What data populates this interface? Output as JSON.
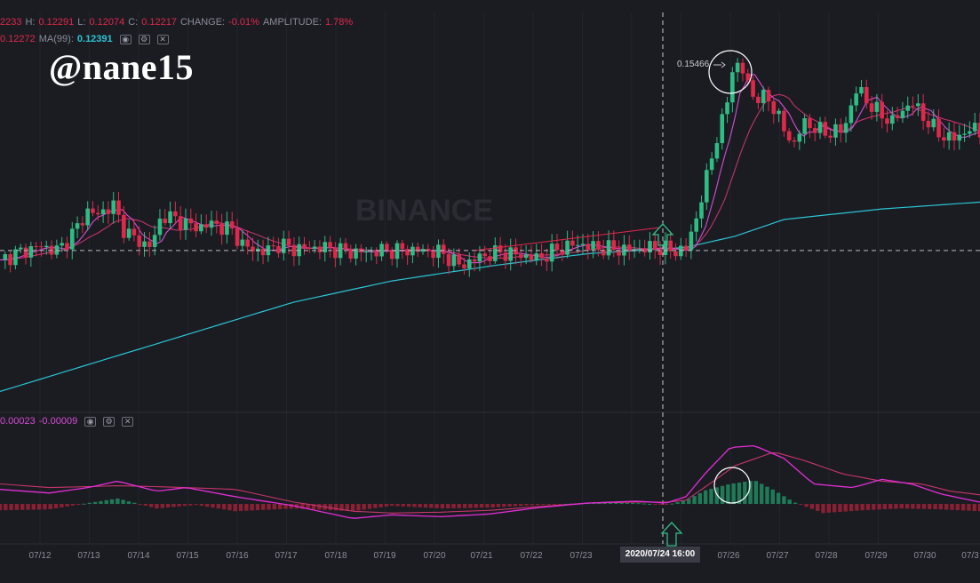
{
  "header": {
    "open_value": "2233",
    "h_label": "H:",
    "h_value": "0.12291",
    "l_label": "L:",
    "l_value": "0.12074",
    "c_label": "C:",
    "c_value": "0.12217",
    "change_label": "CHANGE:",
    "change_value": "-0.01%",
    "amplitude_label": "AMPLITUDE:",
    "amplitude_value": "1.78%"
  },
  "ma_row": {
    "ma_short_value": "0.12272",
    "ma99_label": "MA(99):",
    "ma99_value": "0.12391"
  },
  "macd_row": {
    "value_a": "0.00023",
    "value_b": "-0.00009"
  },
  "watermark": "@nane15",
  "brand_watermark": "BINANCE",
  "colors": {
    "up": "#2ebd85",
    "down": "#e0294a",
    "ma_fast": "#d64cd6",
    "ma_mid": "#c2336b",
    "ma99": "#2bc4d4",
    "dif": "#e22ed6",
    "dea": "#c7356c"
  },
  "chart_data": {
    "type": "candlestick",
    "current_price": 0.1225,
    "y_range": [
      0.097,
      0.16
    ],
    "x_ticks": [
      "07/12",
      "07/13",
      "07/14",
      "07/15",
      "07/16",
      "07/17",
      "07/18",
      "07/19",
      "07/20",
      "07/21",
      "07/22",
      "07/23",
      "07/26",
      "07/27",
      "07/28",
      "07/29",
      "07/30",
      "07/3"
    ],
    "cursor_label": "2020/07/24 16:00",
    "peak_label": "0.15466",
    "price_path": [
      [
        0,
        0.121
      ],
      [
        0.02,
        0.1222
      ],
      [
        0.04,
        0.1232
      ],
      [
        0.06,
        0.1225
      ],
      [
        0.08,
        0.1265
      ],
      [
        0.09,
        0.129
      ],
      [
        0.1,
        0.1282
      ],
      [
        0.115,
        0.13
      ],
      [
        0.125,
        0.1262
      ],
      [
        0.14,
        0.124
      ],
      [
        0.155,
        0.1232
      ],
      [
        0.165,
        0.1283
      ],
      [
        0.18,
        0.1275
      ],
      [
        0.2,
        0.1262
      ],
      [
        0.215,
        0.1268
      ],
      [
        0.235,
        0.126
      ],
      [
        0.25,
        0.123
      ],
      [
        0.27,
        0.1223
      ],
      [
        0.285,
        0.1235
      ],
      [
        0.3,
        0.1228
      ],
      [
        0.33,
        0.123
      ],
      [
        0.36,
        0.1222
      ],
      [
        0.39,
        0.1225
      ],
      [
        0.42,
        0.1226
      ],
      [
        0.45,
        0.1222
      ],
      [
        0.47,
        0.12
      ],
      [
        0.49,
        0.1215
      ],
      [
        0.51,
        0.1222
      ],
      [
        0.53,
        0.1218
      ],
      [
        0.55,
        0.1212
      ],
      [
        0.57,
        0.1228
      ],
      [
        0.59,
        0.1236
      ],
      [
        0.61,
        0.1229
      ],
      [
        0.64,
        0.1226
      ],
      [
        0.67,
        0.123
      ],
      [
        0.69,
        0.1224
      ],
      [
        0.7,
        0.1228
      ],
      [
        0.71,
        0.1275
      ],
      [
        0.72,
        0.1335
      ],
      [
        0.73,
        0.1402
      ],
      [
        0.74,
        0.1445
      ],
      [
        0.748,
        0.1525
      ],
      [
        0.756,
        0.152
      ],
      [
        0.77,
        0.147
      ],
      [
        0.785,
        0.147
      ],
      [
        0.8,
        0.142
      ],
      [
        0.81,
        0.1395
      ],
      [
        0.82,
        0.1432
      ],
      [
        0.84,
        0.1415
      ],
      [
        0.86,
        0.1418
      ],
      [
        0.875,
        0.1488
      ],
      [
        0.89,
        0.1455
      ],
      [
        0.91,
        0.1432
      ],
      [
        0.93,
        0.1465
      ],
      [
        0.945,
        0.1435
      ],
      [
        0.96,
        0.141
      ],
      [
        0.975,
        0.1405
      ],
      [
        0.99,
        0.1422
      ],
      [
        1,
        0.1415
      ]
    ],
    "ma99_path": [
      [
        0,
        0.0998
      ],
      [
        0.1,
        0.1046
      ],
      [
        0.2,
        0.1094
      ],
      [
        0.3,
        0.1142
      ],
      [
        0.4,
        0.1176
      ],
      [
        0.5,
        0.12
      ],
      [
        0.6,
        0.122
      ],
      [
        0.7,
        0.123
      ],
      [
        0.75,
        0.1248
      ],
      [
        0.8,
        0.1275
      ],
      [
        0.9,
        0.1292
      ],
      [
        1,
        0.1303
      ]
    ],
    "macd": {
      "y_range": [
        -0.004,
        0.0085
      ],
      "dif_path": [
        [
          0,
          0.0016
        ],
        [
          0.05,
          0.0012
        ],
        [
          0.09,
          0.0018
        ],
        [
          0.12,
          0.0025
        ],
        [
          0.16,
          0.0014
        ],
        [
          0.19,
          0.0018
        ],
        [
          0.24,
          0.0008
        ],
        [
          0.3,
          -0.0002
        ],
        [
          0.36,
          -0.0016
        ],
        [
          0.4,
          -0.0012
        ],
        [
          0.45,
          -0.0014
        ],
        [
          0.5,
          -0.0011
        ],
        [
          0.55,
          -0.0004
        ],
        [
          0.6,
          0.0001
        ],
        [
          0.65,
          0.0003
        ],
        [
          0.68,
          0.0001
        ],
        [
          0.7,
          0.0008
        ],
        [
          0.72,
          0.0034
        ],
        [
          0.745,
          0.0062
        ],
        [
          0.77,
          0.0064
        ],
        [
          0.8,
          0.005
        ],
        [
          0.83,
          0.0022
        ],
        [
          0.87,
          0.0018
        ],
        [
          0.9,
          0.0027
        ],
        [
          0.93,
          0.0022
        ],
        [
          0.96,
          0.0011
        ],
        [
          1,
          0.0002
        ]
      ],
      "dea_path": [
        [
          0,
          0.0022
        ],
        [
          0.05,
          0.0018
        ],
        [
          0.09,
          0.0019
        ],
        [
          0.12,
          0.002
        ],
        [
          0.16,
          0.0019
        ],
        [
          0.19,
          0.0018
        ],
        [
          0.24,
          0.0016
        ],
        [
          0.3,
          0.0002
        ],
        [
          0.36,
          -0.0008
        ],
        [
          0.4,
          -0.001
        ],
        [
          0.45,
          -0.0009
        ],
        [
          0.5,
          -0.0007
        ],
        [
          0.55,
          -0.0003
        ],
        [
          0.6,
          0.0001
        ],
        [
          0.65,
          0.0002
        ],
        [
          0.68,
          0.0002
        ],
        [
          0.7,
          0.0004
        ],
        [
          0.72,
          0.0019
        ],
        [
          0.75,
          0.0042
        ],
        [
          0.79,
          0.0057
        ],
        [
          0.82,
          0.0048
        ],
        [
          0.86,
          0.0033
        ],
        [
          0.9,
          0.0025
        ],
        [
          0.94,
          0.0022
        ],
        [
          0.97,
          0.0014
        ],
        [
          1,
          0.001
        ]
      ],
      "histogram_path": [
        [
          0,
          -0.0007
        ],
        [
          0.05,
          -0.0006
        ],
        [
          0.09,
          0.0001
        ],
        [
          0.12,
          0.0006
        ],
        [
          0.16,
          -0.0005
        ],
        [
          0.2,
          -0.0001
        ],
        [
          0.24,
          -0.0008
        ],
        [
          0.3,
          -0.0005
        ],
        [
          0.36,
          -0.0008
        ],
        [
          0.4,
          -0.0002
        ],
        [
          0.45,
          -0.0005
        ],
        [
          0.5,
          -0.0004
        ],
        [
          0.55,
          -0.0001
        ],
        [
          0.6,
          0.0001
        ],
        [
          0.65,
          0.0001
        ],
        [
          0.68,
          -0.0001
        ],
        [
          0.7,
          0.0004
        ],
        [
          0.72,
          0.0015
        ],
        [
          0.745,
          0.0022
        ],
        [
          0.77,
          0.0026
        ],
        [
          0.79,
          0.0015
        ],
        [
          0.81,
          0.0002
        ],
        [
          0.84,
          -0.001
        ],
        [
          0.88,
          -0.0007
        ],
        [
          0.92,
          -0.0005
        ],
        [
          0.96,
          -0.0006
        ],
        [
          1,
          -0.0008
        ]
      ]
    }
  }
}
